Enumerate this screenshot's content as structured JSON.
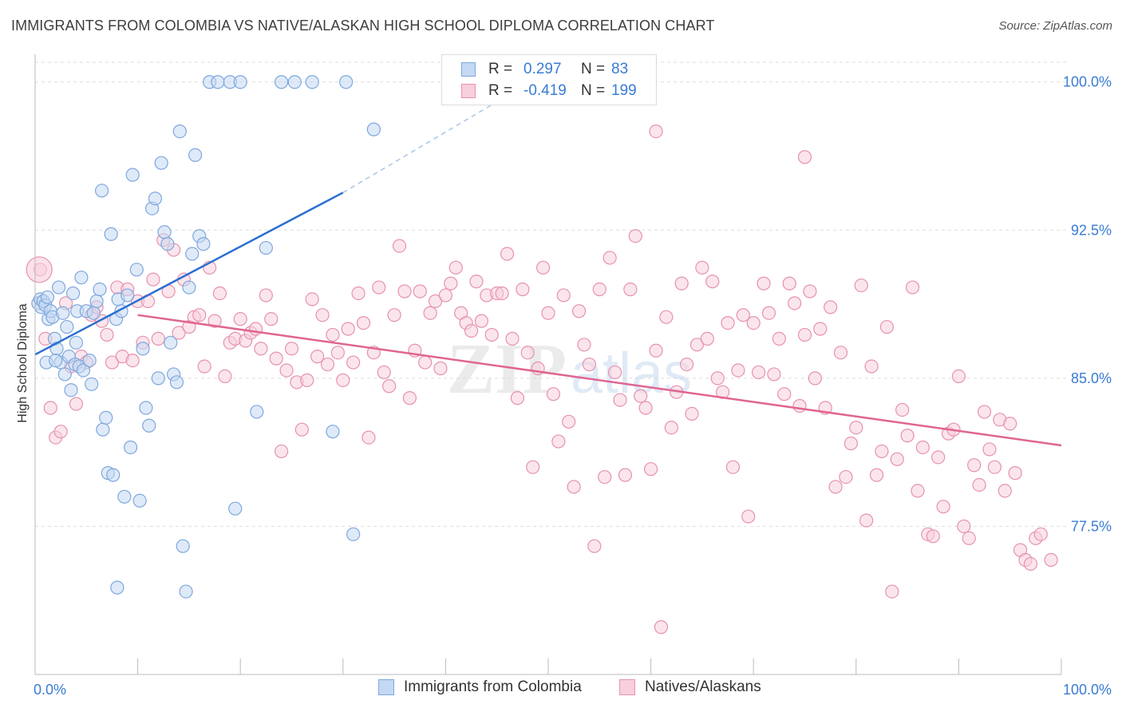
{
  "header": {
    "title": "IMMIGRANTS FROM COLOMBIA VS NATIVE/ALASKAN HIGH SCHOOL DIPLOMA CORRELATION CHART",
    "source": "Source: ZipAtlas.com"
  },
  "legend": {
    "series": [
      {
        "r_label": "R =",
        "r_value": "0.297",
        "n_label": "N =",
        "n_value": "83"
      },
      {
        "r_label": "R =",
        "r_value": "-0.419",
        "n_label": "N =",
        "n_value": "199"
      }
    ]
  },
  "bottom_legend": {
    "colombia": "Immigrants from Colombia",
    "natives": "Natives/Alaskans"
  },
  "watermark": {
    "zip": "ZIP",
    "atlas": "atlas"
  },
  "colors": {
    "blue_fill": "#c4d8f3",
    "blue_stroke": "#7ea7de",
    "blue_line": "#2a6fd0",
    "pink_fill": "#f8cfdc",
    "pink_stroke": "#e692ae",
    "pink_line": "#e06592",
    "axis_text": "#3a7bd5",
    "grid": "#dedede"
  },
  "chart_data": {
    "type": "scatter",
    "title": "IMMIGRANTS FROM COLOMBIA VS NATIVE/ALASKAN HIGH SCHOOL DIPLOMA CORRELATION CHART",
    "xlabel": "",
    "ylabel": "High School Diploma",
    "xlim": [
      0,
      100
    ],
    "ylim": [
      70.0,
      101.0
    ],
    "x_tick_labels": [
      "0.0%",
      "100.0%"
    ],
    "y_ticks": [
      77.5,
      85.0,
      92.5,
      100.0
    ],
    "y_tick_labels": [
      "77.5%",
      "85.0%",
      "92.5%",
      "100.0%"
    ],
    "grid": true,
    "legend_position": "top-center",
    "series": [
      {
        "name": "Immigrants from Colombia",
        "color": "#7ea7de",
        "r": 0.297,
        "n": 83,
        "trend": {
          "x0": 0,
          "y0": 86.2,
          "x1": 30,
          "y1": 94.4,
          "dashed_to": [
            45,
            99.0
          ]
        },
        "points": [
          [
            0.3,
            88.8
          ],
          [
            0.5,
            89.0
          ],
          [
            0.6,
            88.6
          ],
          [
            0.8,
            88.9
          ],
          [
            1.0,
            88.7
          ],
          [
            1.2,
            89.1
          ],
          [
            1.3,
            88.0
          ],
          [
            1.5,
            88.4
          ],
          [
            1.7,
            88.1
          ],
          [
            1.9,
            87.0
          ],
          [
            2.1,
            86.5
          ],
          [
            2.3,
            89.6
          ],
          [
            2.5,
            85.8
          ],
          [
            2.7,
            88.3
          ],
          [
            2.9,
            85.2
          ],
          [
            3.1,
            87.6
          ],
          [
            3.3,
            86.1
          ],
          [
            3.5,
            84.4
          ],
          [
            3.7,
            89.3
          ],
          [
            3.9,
            85.7
          ],
          [
            4.1,
            88.4
          ],
          [
            4.3,
            85.6
          ],
          [
            4.5,
            90.1
          ],
          [
            4.7,
            85.4
          ],
          [
            5.0,
            88.4
          ],
          [
            5.3,
            85.9
          ],
          [
            5.5,
            84.7
          ],
          [
            5.7,
            88.3
          ],
          [
            6.0,
            88.9
          ],
          [
            6.3,
            89.5
          ],
          [
            6.6,
            82.4
          ],
          [
            6.9,
            83.0
          ],
          [
            7.1,
            80.2
          ],
          [
            7.4,
            92.3
          ],
          [
            7.6,
            80.1
          ],
          [
            7.9,
            88.0
          ],
          [
            8.1,
            89.0
          ],
          [
            8.4,
            88.4
          ],
          [
            8.7,
            79.0
          ],
          [
            9.0,
            89.2
          ],
          [
            9.3,
            81.5
          ],
          [
            9.5,
            95.3
          ],
          [
            9.9,
            90.5
          ],
          [
            10.2,
            78.8
          ],
          [
            10.5,
            86.5
          ],
          [
            10.8,
            83.5
          ],
          [
            11.1,
            82.6
          ],
          [
            11.4,
            93.6
          ],
          [
            11.7,
            94.1
          ],
          [
            12.0,
            85.0
          ],
          [
            12.3,
            95.9
          ],
          [
            12.6,
            92.4
          ],
          [
            12.9,
            91.8
          ],
          [
            13.2,
            86.8
          ],
          [
            13.5,
            85.2
          ],
          [
            13.8,
            84.8
          ],
          [
            14.1,
            97.5
          ],
          [
            14.4,
            76.5
          ],
          [
            14.7,
            74.2
          ],
          [
            15.0,
            89.6
          ],
          [
            15.3,
            91.3
          ],
          [
            15.6,
            96.3
          ],
          [
            16.0,
            92.2
          ],
          [
            16.4,
            91.8
          ],
          [
            17.0,
            100.0
          ],
          [
            17.8,
            100.0
          ],
          [
            19.0,
            100.0
          ],
          [
            19.5,
            78.4
          ],
          [
            20.0,
            100.0
          ],
          [
            21.6,
            83.3
          ],
          [
            22.5,
            91.6
          ],
          [
            24.0,
            100.0
          ],
          [
            25.3,
            100.0
          ],
          [
            27.0,
            100.0
          ],
          [
            29.0,
            82.3
          ],
          [
            30.3,
            100.0
          ],
          [
            31.0,
            77.1
          ],
          [
            33.0,
            97.6
          ],
          [
            8.0,
            74.4
          ],
          [
            1.1,
            85.8
          ],
          [
            2.0,
            85.9
          ],
          [
            4.0,
            86.8
          ],
          [
            6.5,
            94.5
          ]
        ]
      },
      {
        "name": "Natives/Alaskans",
        "color": "#e692ae",
        "r": -0.419,
        "n": 199,
        "trend": {
          "x0": 10,
          "y0": 88.2,
          "x1": 100,
          "y1": 81.6
        },
        "points": [
          [
            0.5,
            90.5
          ],
          [
            1.0,
            87.0
          ],
          [
            1.5,
            83.5
          ],
          [
            2.0,
            82.0
          ],
          [
            2.5,
            82.3
          ],
          [
            3.0,
            88.8
          ],
          [
            3.5,
            85.6
          ],
          [
            4.0,
            83.7
          ],
          [
            4.5,
            86.1
          ],
          [
            5.0,
            85.8
          ],
          [
            5.5,
            88.2
          ],
          [
            6.0,
            88.6
          ],
          [
            6.5,
            87.9
          ],
          [
            7.0,
            87.2
          ],
          [
            7.5,
            85.8
          ],
          [
            8.0,
            89.6
          ],
          [
            8.5,
            86.1
          ],
          [
            9.0,
            89.5
          ],
          [
            9.5,
            85.9
          ],
          [
            10.0,
            88.9
          ],
          [
            10.5,
            86.8
          ],
          [
            11.0,
            88.9
          ],
          [
            11.5,
            90.0
          ],
          [
            12.0,
            87.0
          ],
          [
            12.5,
            92.0
          ],
          [
            13.0,
            89.4
          ],
          [
            13.5,
            91.5
          ],
          [
            14.0,
            87.3
          ],
          [
            14.5,
            90.0
          ],
          [
            15.0,
            87.6
          ],
          [
            15.5,
            88.1
          ],
          [
            16.0,
            88.2
          ],
          [
            16.5,
            85.6
          ],
          [
            17.0,
            90.6
          ],
          [
            17.5,
            87.9
          ],
          [
            18.0,
            89.3
          ],
          [
            18.5,
            85.1
          ],
          [
            19.0,
            86.8
          ],
          [
            19.5,
            87.0
          ],
          [
            20.0,
            88.0
          ],
          [
            20.5,
            86.9
          ],
          [
            21.0,
            87.3
          ],
          [
            21.5,
            87.5
          ],
          [
            22.0,
            86.5
          ],
          [
            22.5,
            89.2
          ],
          [
            23.0,
            88.0
          ],
          [
            23.5,
            86.0
          ],
          [
            24.0,
            81.3
          ],
          [
            24.5,
            85.4
          ],
          [
            25.0,
            86.5
          ],
          [
            25.5,
            84.8
          ],
          [
            26.0,
            82.4
          ],
          [
            26.5,
            84.9
          ],
          [
            27.0,
            89.0
          ],
          [
            27.5,
            86.1
          ],
          [
            28.0,
            88.2
          ],
          [
            28.5,
            85.7
          ],
          [
            29.0,
            87.2
          ],
          [
            29.5,
            86.3
          ],
          [
            30.0,
            84.9
          ],
          [
            30.5,
            87.5
          ],
          [
            31.0,
            85.8
          ],
          [
            31.5,
            89.3
          ],
          [
            32.0,
            87.8
          ],
          [
            32.5,
            82.0
          ],
          [
            33.0,
            86.3
          ],
          [
            33.5,
            89.6
          ],
          [
            34.0,
            85.3
          ],
          [
            34.5,
            84.6
          ],
          [
            35.0,
            88.2
          ],
          [
            35.5,
            91.7
          ],
          [
            36.0,
            89.4
          ],
          [
            36.5,
            84.0
          ],
          [
            37.0,
            86.4
          ],
          [
            37.5,
            89.4
          ],
          [
            38.0,
            85.8
          ],
          [
            38.5,
            88.3
          ],
          [
            39.0,
            88.9
          ],
          [
            39.5,
            85.5
          ],
          [
            40.0,
            89.2
          ],
          [
            40.5,
            89.8
          ],
          [
            41.0,
            90.6
          ],
          [
            41.5,
            88.3
          ],
          [
            42.0,
            87.8
          ],
          [
            42.5,
            87.4
          ],
          [
            43.0,
            89.9
          ],
          [
            43.5,
            87.9
          ],
          [
            44.0,
            89.2
          ],
          [
            44.5,
            87.2
          ],
          [
            45.0,
            89.3
          ],
          [
            45.5,
            89.3
          ],
          [
            46.0,
            91.3
          ],
          [
            46.5,
            87.0
          ],
          [
            47.0,
            84.0
          ],
          [
            47.5,
            89.5
          ],
          [
            48.0,
            86.3
          ],
          [
            48.5,
            80.5
          ],
          [
            49.0,
            85.5
          ],
          [
            49.5,
            90.6
          ],
          [
            50.0,
            88.3
          ],
          [
            50.5,
            84.2
          ],
          [
            51.0,
            81.8
          ],
          [
            51.5,
            89.2
          ],
          [
            52.0,
            82.8
          ],
          [
            52.5,
            79.5
          ],
          [
            53.0,
            88.4
          ],
          [
            53.5,
            86.7
          ],
          [
            54.0,
            85.7
          ],
          [
            54.5,
            76.5
          ],
          [
            55.0,
            89.5
          ],
          [
            55.5,
            80.0
          ],
          [
            56.0,
            91.1
          ],
          [
            56.5,
            85.3
          ],
          [
            57.0,
            83.9
          ],
          [
            57.5,
            80.1
          ],
          [
            58.0,
            89.5
          ],
          [
            58.5,
            92.2
          ],
          [
            59.0,
            84.1
          ],
          [
            59.5,
            83.5
          ],
          [
            60.0,
            80.4
          ],
          [
            60.5,
            86.4
          ],
          [
            61.0,
            72.4
          ],
          [
            61.5,
            88.1
          ],
          [
            62.0,
            82.5
          ],
          [
            62.5,
            84.3
          ],
          [
            63.0,
            89.8
          ],
          [
            63.5,
            85.7
          ],
          [
            64.0,
            83.2
          ],
          [
            64.5,
            86.7
          ],
          [
            65.0,
            90.6
          ],
          [
            65.5,
            87.0
          ],
          [
            66.0,
            89.9
          ],
          [
            66.5,
            85.0
          ],
          [
            67.0,
            84.3
          ],
          [
            67.5,
            87.8
          ],
          [
            68.0,
            80.5
          ],
          [
            68.5,
            85.4
          ],
          [
            69.0,
            88.2
          ],
          [
            69.5,
            78.0
          ],
          [
            70.0,
            87.8
          ],
          [
            70.5,
            85.3
          ],
          [
            71.0,
            89.8
          ],
          [
            71.5,
            88.3
          ],
          [
            72.0,
            85.2
          ],
          [
            72.5,
            87.0
          ],
          [
            73.0,
            84.2
          ],
          [
            73.5,
            89.8
          ],
          [
            74.0,
            88.8
          ],
          [
            74.5,
            83.6
          ],
          [
            75.0,
            87.2
          ],
          [
            75.5,
            89.4
          ],
          [
            76.0,
            85.0
          ],
          [
            76.5,
            87.5
          ],
          [
            77.0,
            83.5
          ],
          [
            77.5,
            88.6
          ],
          [
            78.0,
            79.5
          ],
          [
            78.5,
            86.3
          ],
          [
            79.0,
            80.0
          ],
          [
            79.5,
            81.7
          ],
          [
            80.0,
            82.5
          ],
          [
            80.5,
            89.7
          ],
          [
            81.0,
            77.8
          ],
          [
            81.5,
            85.6
          ],
          [
            82.0,
            80.1
          ],
          [
            82.5,
            81.3
          ],
          [
            83.0,
            87.6
          ],
          [
            83.5,
            74.2
          ],
          [
            84.0,
            80.9
          ],
          [
            84.5,
            83.4
          ],
          [
            85.0,
            82.1
          ],
          [
            85.5,
            89.6
          ],
          [
            86.0,
            79.3
          ],
          [
            86.5,
            81.5
          ],
          [
            87.0,
            77.1
          ],
          [
            87.5,
            77.0
          ],
          [
            88.0,
            81.0
          ],
          [
            88.5,
            78.5
          ],
          [
            89.0,
            82.2
          ],
          [
            89.5,
            82.4
          ],
          [
            90.0,
            85.1
          ],
          [
            90.5,
            77.5
          ],
          [
            91.0,
            76.9
          ],
          [
            91.5,
            80.6
          ],
          [
            92.0,
            79.6
          ],
          [
            92.5,
            83.3
          ],
          [
            93.0,
            81.4
          ],
          [
            93.5,
            80.5
          ],
          [
            94.0,
            82.9
          ],
          [
            94.5,
            79.3
          ],
          [
            95.0,
            82.7
          ],
          [
            95.5,
            80.2
          ],
          [
            96.0,
            76.3
          ],
          [
            96.5,
            75.8
          ],
          [
            97.0,
            75.6
          ],
          [
            97.5,
            76.9
          ],
          [
            98.0,
            77.1
          ],
          [
            99.0,
            75.8
          ],
          [
            60.5,
            97.5
          ],
          [
            75.0,
            96.2
          ]
        ]
      }
    ]
  }
}
